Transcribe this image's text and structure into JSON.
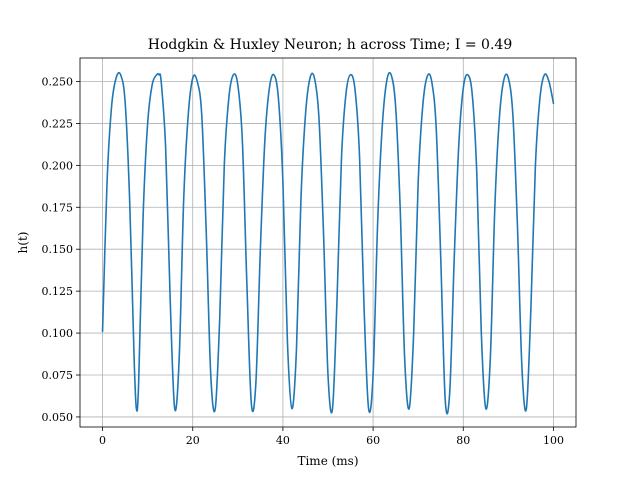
{
  "chart_data": {
    "type": "line",
    "title": "Hodgkin & Huxley Neuron; h across Time; I = 0.49",
    "xlabel": "Time (ms)",
    "ylabel": "h(t)",
    "xlim": [
      -5,
      105
    ],
    "ylim": [
      0.044,
      0.264
    ],
    "x_ticks": [
      0,
      20,
      40,
      60,
      80,
      100
    ],
    "x_tick_labels": [
      "0",
      "20",
      "40",
      "60",
      "80",
      "100"
    ],
    "y_ticks": [
      0.05,
      0.075,
      0.1,
      0.125,
      0.15,
      0.175,
      0.2,
      0.225,
      0.25
    ],
    "y_tick_labels": [
      "0.050",
      "0.075",
      "0.100",
      "0.125",
      "0.150",
      "0.175",
      "0.200",
      "0.225",
      "0.250"
    ],
    "grid": true,
    "color": "#1f77b4",
    "series": [
      {
        "x": [
          0,
          1,
          2,
          3,
          4,
          5,
          6,
          7,
          7.5,
          8,
          9,
          10,
          11,
          12,
          12.5,
          13,
          14,
          15,
          16,
          17,
          18,
          19,
          20,
          21,
          22,
          23,
          24,
          25,
          26,
          27,
          28,
          29,
          30,
          31,
          32,
          33,
          34,
          35,
          36,
          37,
          38,
          39,
          40,
          41,
          42,
          43,
          44,
          45,
          46,
          47,
          48,
          49,
          50,
          51,
          52,
          53,
          54,
          55,
          56,
          57,
          58,
          59,
          60,
          61,
          62,
          63,
          64,
          65,
          66,
          67,
          68,
          69,
          70,
          71,
          72,
          73,
          74,
          75,
          76,
          77,
          78,
          79,
          80,
          81,
          82,
          83,
          84,
          85,
          86,
          87,
          88,
          89,
          90,
          91,
          92,
          93,
          94,
          95,
          96,
          97,
          98,
          99,
          100
        ],
        "y": [
          0.101,
          0.19,
          0.235,
          0.252,
          0.254,
          0.238,
          0.18,
          0.085,
          0.055,
          0.07,
          0.17,
          0.225,
          0.248,
          0.254,
          0.254,
          0.25,
          0.21,
          0.12,
          0.055,
          0.085,
          0.18,
          0.23,
          0.252,
          0.25,
          0.23,
          0.16,
          0.075,
          0.055,
          0.11,
          0.2,
          0.24,
          0.254,
          0.248,
          0.215,
          0.13,
          0.058,
          0.07,
          0.15,
          0.215,
          0.246,
          0.254,
          0.24,
          0.19,
          0.095,
          0.055,
          0.09,
          0.18,
          0.23,
          0.252,
          0.252,
          0.228,
          0.16,
          0.075,
          0.055,
          0.12,
          0.205,
          0.243,
          0.254,
          0.245,
          0.205,
          0.115,
          0.055,
          0.075,
          0.165,
          0.222,
          0.25,
          0.254,
          0.235,
          0.175,
          0.085,
          0.055,
          0.1,
          0.19,
          0.235,
          0.253,
          0.25,
          0.222,
          0.145,
          0.06,
          0.065,
          0.145,
          0.212,
          0.246,
          0.254,
          0.242,
          0.195,
          0.1,
          0.055,
          0.085,
          0.175,
          0.228,
          0.251,
          0.252,
          0.23,
          0.165,
          0.08,
          0.055,
          0.115,
          0.2,
          0.24,
          0.254,
          0.25,
          0.237
        ]
      }
    ]
  }
}
